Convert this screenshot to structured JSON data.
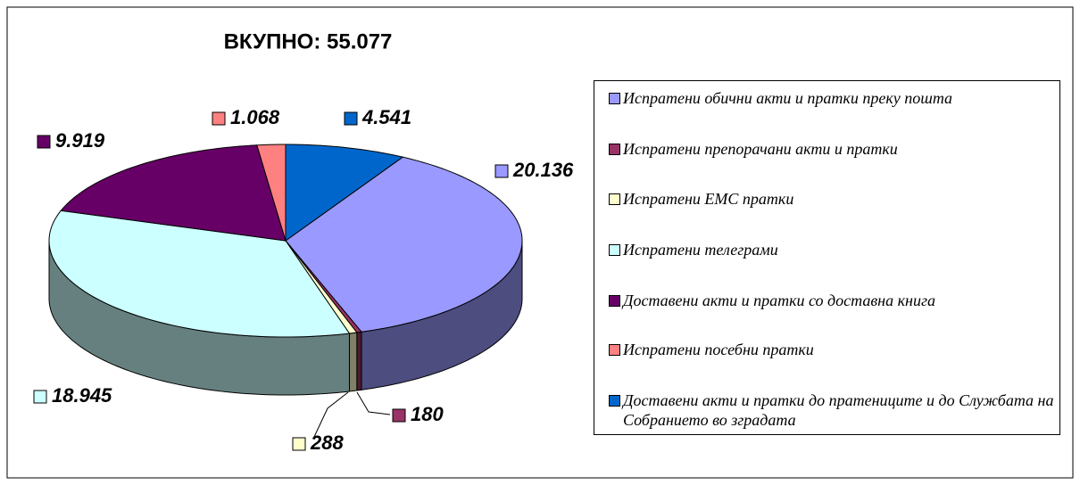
{
  "chart_data": {
    "type": "pie3d",
    "title": "ВКУПНО: 55.077",
    "categories": [
      "Испратени обични акти и пратки преку пошта",
      "Испратени препорачани акти и пратки",
      "Испратени ЕМС пратки",
      "Испратени телеграми",
      "Доставени акти и пратки со доставна книга",
      "Испратени посебни пратки",
      "Доставени акти и пратки до пратениците и до Службата на Собранието во зградата"
    ],
    "values": [
      20136,
      180,
      288,
      18945,
      9919,
      1068,
      4541
    ],
    "value_labels": [
      "20.136",
      "180",
      "288",
      "18.945",
      "9.919",
      "1.068",
      "4.541"
    ],
    "colors": [
      "#9999ff",
      "#993366",
      "#ffffcc",
      "#ccffff",
      "#660066",
      "#ff8080",
      "#0066cc"
    ],
    "legend": "right"
  }
}
